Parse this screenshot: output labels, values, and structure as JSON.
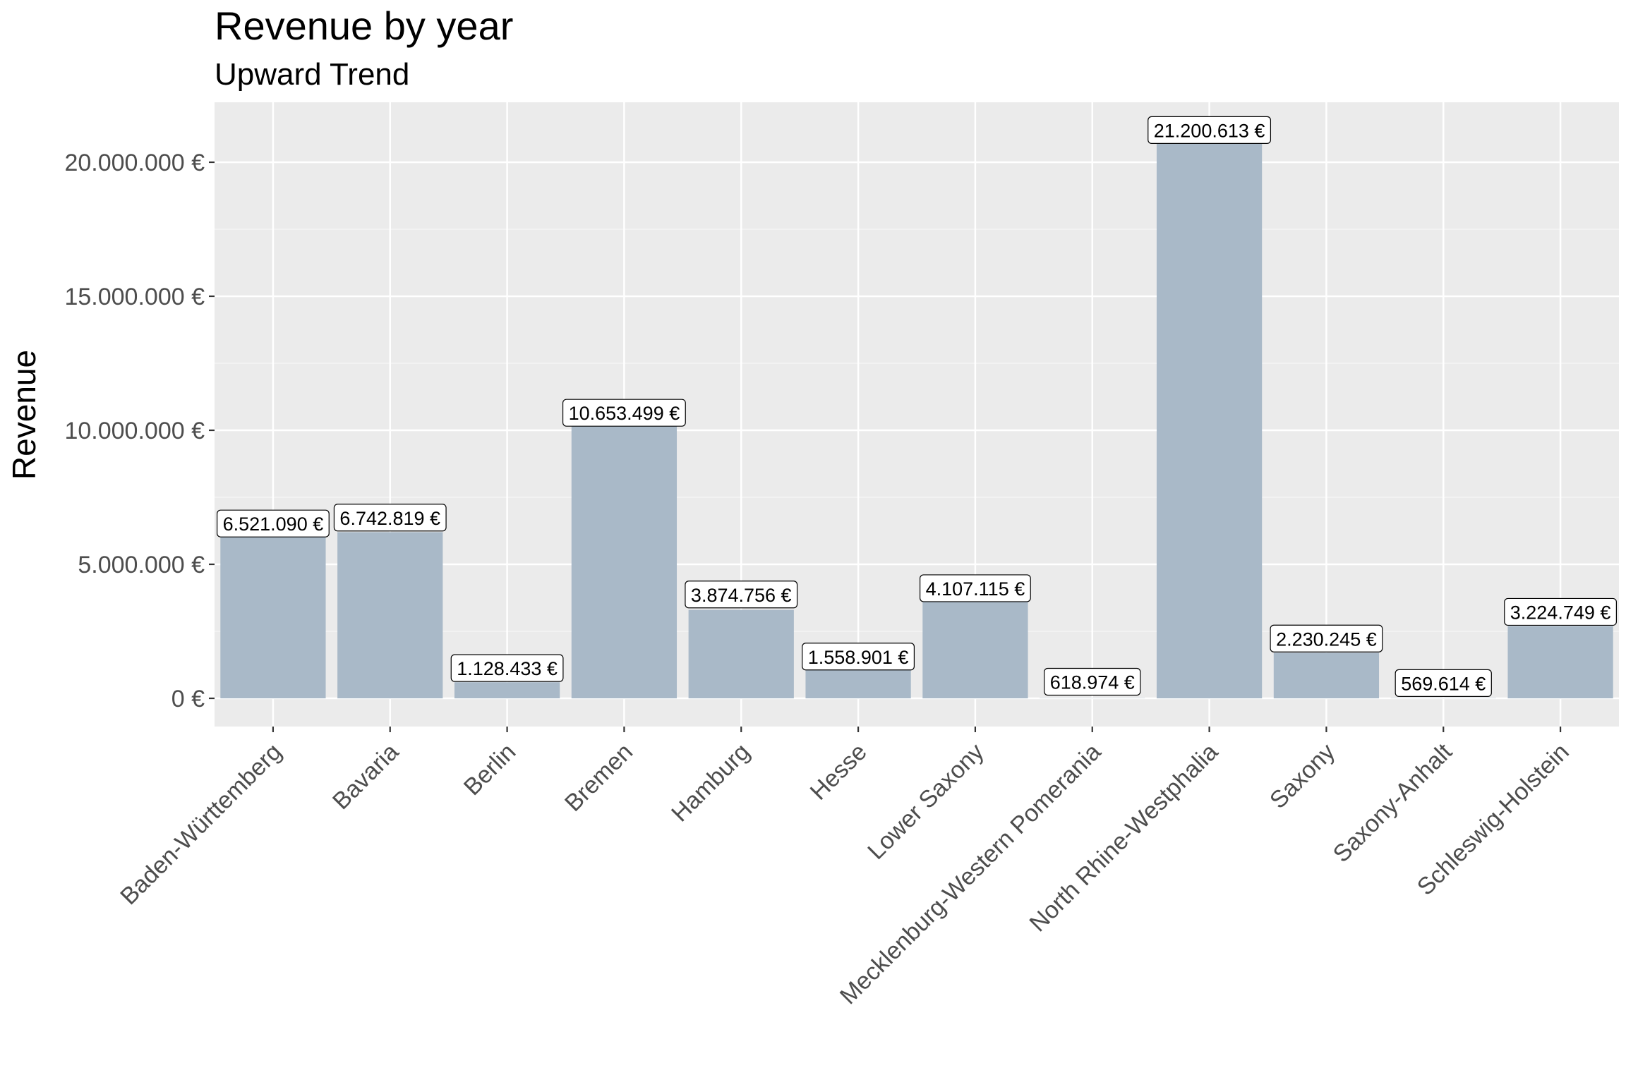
{
  "chart_data": {
    "type": "bar",
    "title": "Revenue by year",
    "subtitle": "Upward Trend",
    "xlabel": "",
    "ylabel": "Revenue",
    "ylim": [
      -1100000,
      22300000
    ],
    "yticks": [
      0,
      5000000,
      10000000,
      15000000,
      20000000
    ],
    "ytick_labels": [
      "0 €",
      "5.000.000 €",
      "10.000.000 €",
      "15.000.000 €",
      "20.000.000 €"
    ],
    "categories": [
      "Baden-Württemberg",
      "Bavaria",
      "Berlin",
      "Bremen",
      "Hamburg",
      "Hesse",
      "Lower Saxony",
      "Mecklenburg-Western Pomerania",
      "North Rhine-Westphalia",
      "Saxony",
      "Saxony-Anhalt",
      "Schleswig-Holstein"
    ],
    "values": [
      6100000,
      6200000,
      600000,
      10200000,
      3300000,
      1100000,
      3600000,
      10000,
      20700000,
      1700000,
      10000,
      2700000
    ],
    "data_labels": [
      "6.521.090 €",
      "6.742.819 €",
      "1.128.433 €",
      "10.653.499 €",
      "3.874.756 €",
      "1.558.901 €",
      "4.107.115 €",
      "618.974 €",
      "21.200.613 €",
      "2.230.245 €",
      "569.614 €",
      "3.224.749 €"
    ],
    "label_values": [
      6521090,
      6742819,
      1128433,
      10653499,
      3874756,
      1558901,
      4107115,
      618974,
      21200613,
      2230245,
      569614,
      3224749
    ],
    "grid": true,
    "legend": "none",
    "colors": {
      "bar": "#a9b9c8",
      "panel": "#ebebeb",
      "grid_major": "#ffffff",
      "grid_minor": "#f5f5f5",
      "tick_text": "#4d4d4d",
      "label_fill": "#ffffff",
      "label_border": "#000000"
    }
  }
}
